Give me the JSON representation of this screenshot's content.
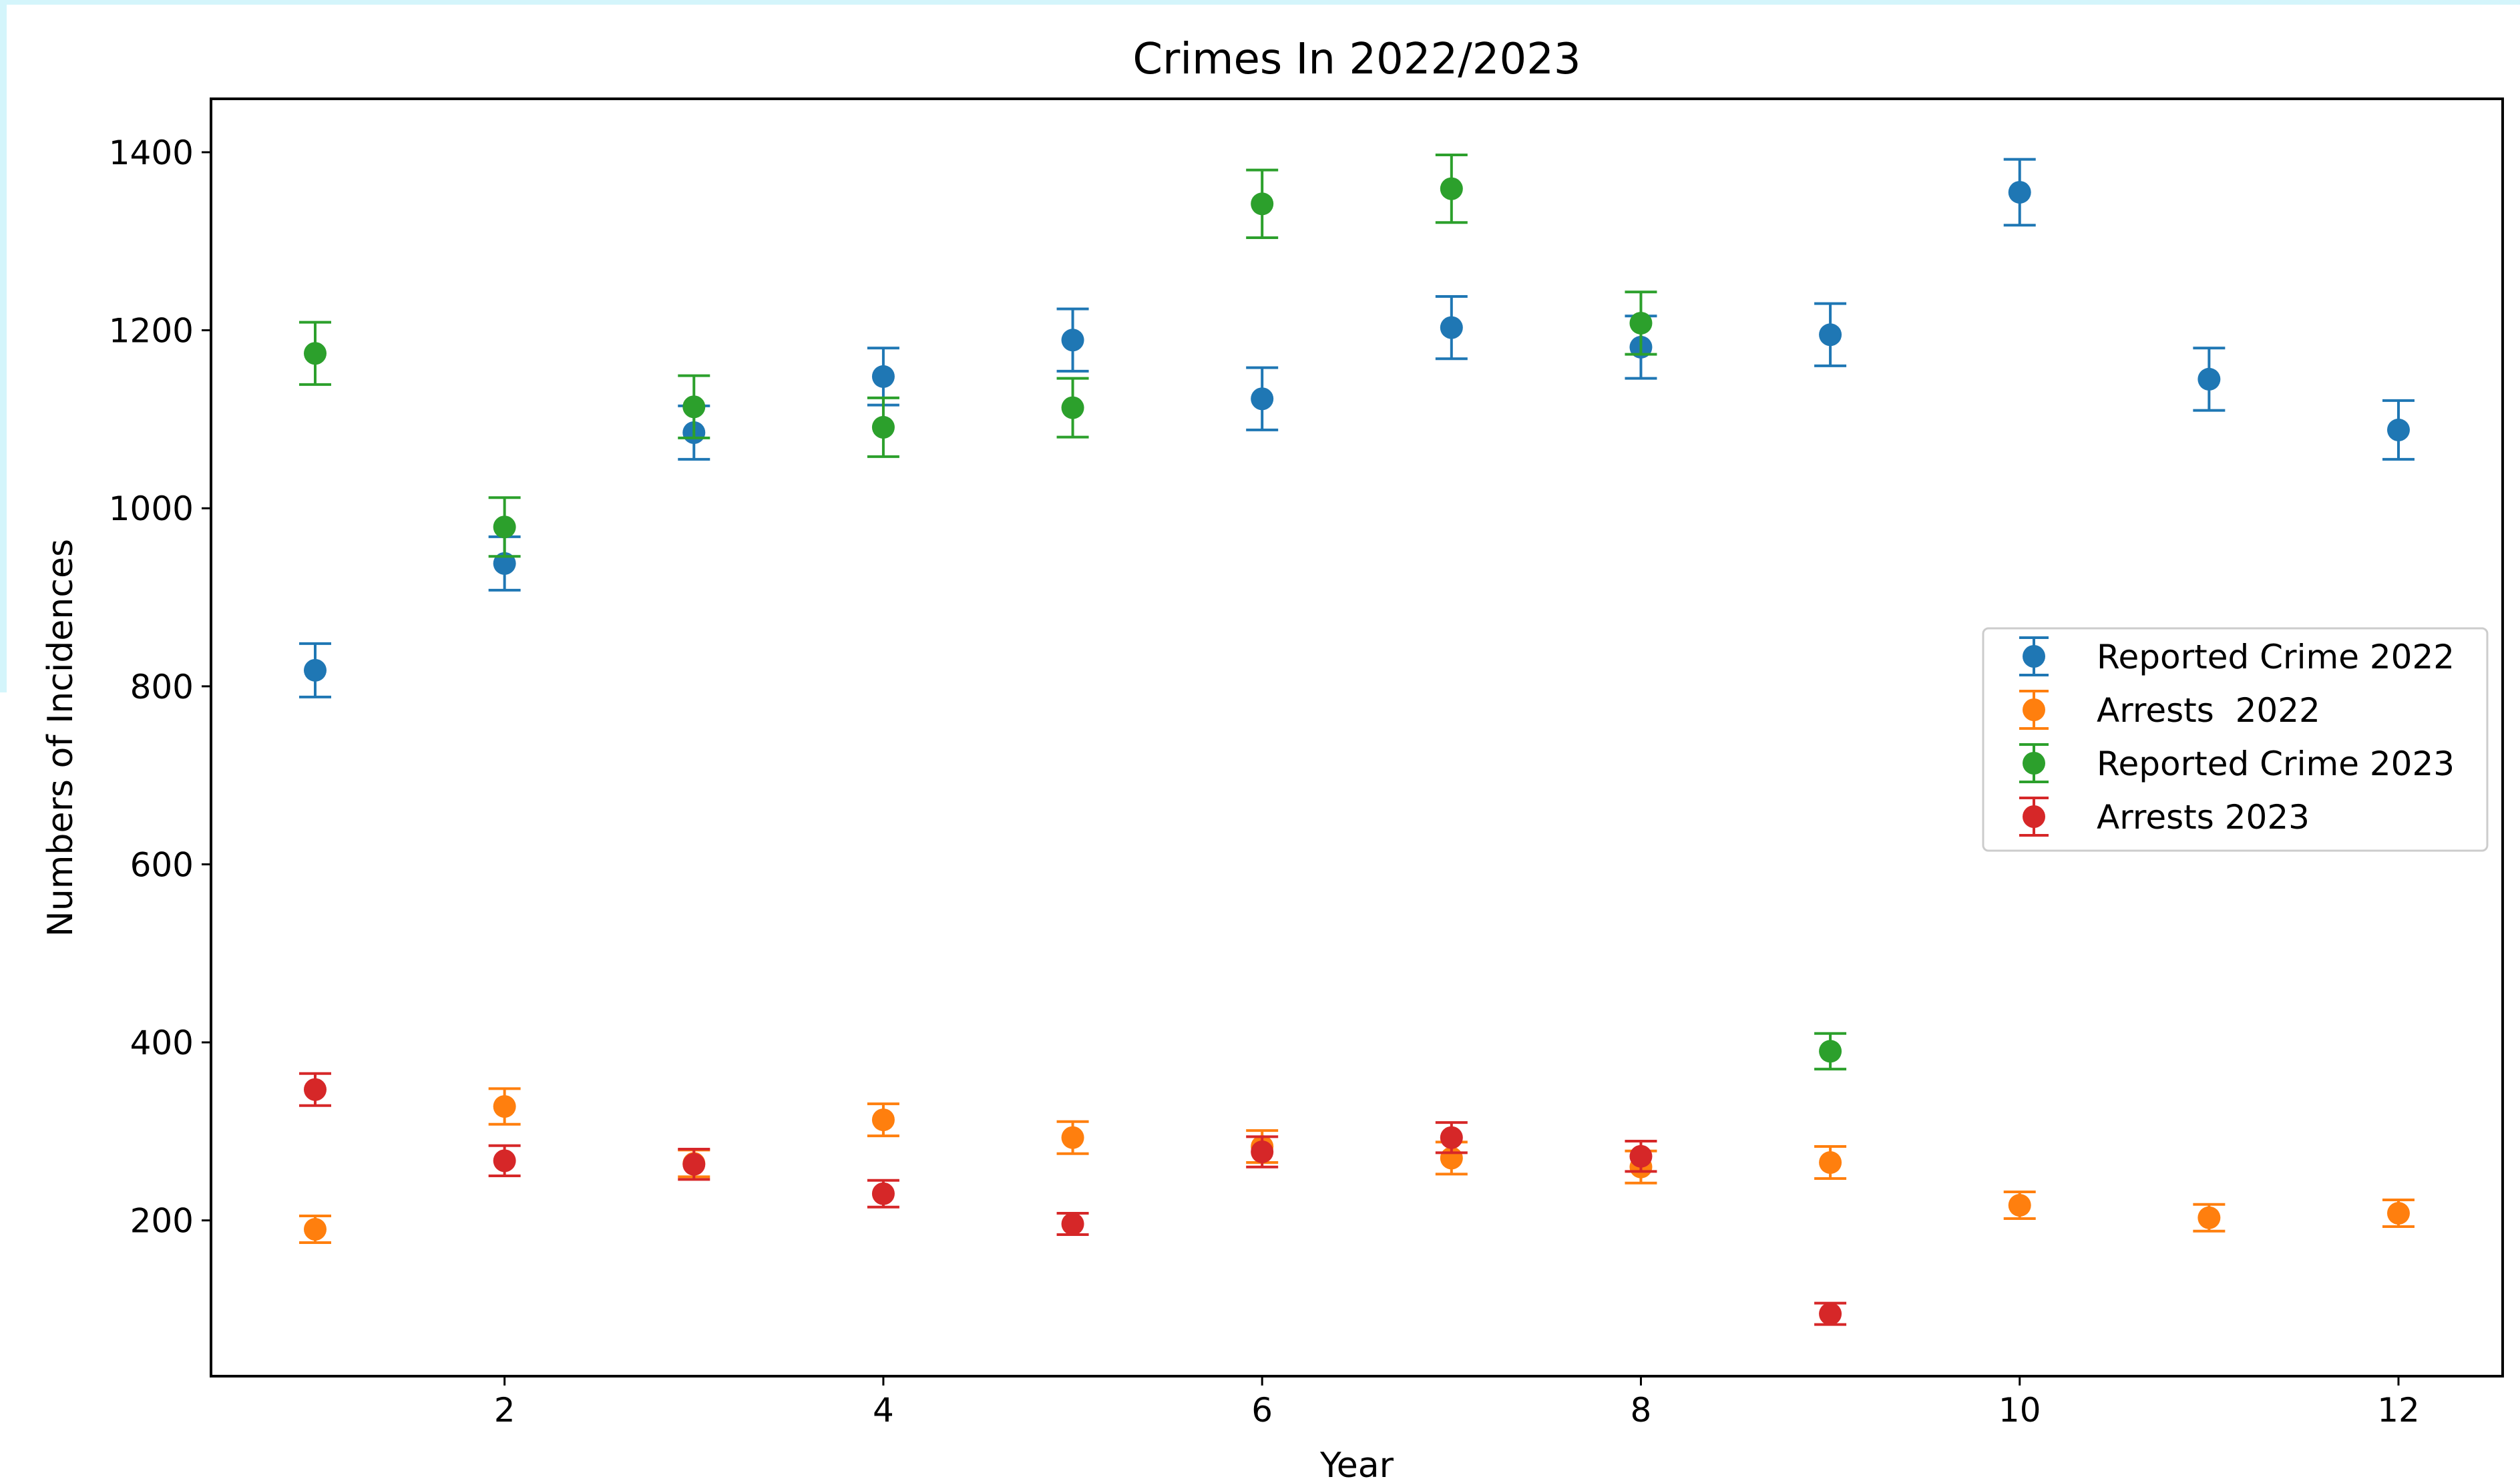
{
  "chart_data": {
    "type": "scatter",
    "title": "Crimes In 2022/2023",
    "xlabel": "Year",
    "ylabel": "Numbers of Incidences",
    "xlim": [
      0.45,
      12.55
    ],
    "ylim": [
      25,
      1460
    ],
    "xticks": [
      2,
      4,
      6,
      8,
      10,
      12
    ],
    "yticks": [
      200,
      400,
      600,
      800,
      1000,
      1200,
      1400
    ],
    "grid": false,
    "legend_placement": "center-right",
    "series": [
      {
        "name": "Reported Crime 2022",
        "color": "#1f77b4",
        "x": [
          1,
          2,
          3,
          4,
          5,
          6,
          7,
          8,
          9,
          10,
          11,
          12
        ],
        "y": [
          818,
          938,
          1085,
          1148,
          1189,
          1123,
          1203,
          1181,
          1195,
          1355,
          1145,
          1088
        ],
        "err": [
          30,
          30,
          30,
          32,
          35,
          35,
          35,
          35,
          35,
          37,
          35,
          33
        ]
      },
      {
        "name": "Arrests  2022",
        "color": "#ff7f0e",
        "x": [
          1,
          2,
          3,
          4,
          5,
          6,
          7,
          8,
          9,
          10,
          11,
          12
        ],
        "y": [
          190,
          328,
          264,
          313,
          293,
          283,
          270,
          260,
          265,
          217,
          203,
          208
        ],
        "err": [
          15,
          20,
          15,
          18,
          18,
          18,
          18,
          18,
          18,
          15,
          15,
          15
        ]
      },
      {
        "name": "Reported Crime 2023",
        "color": "#2ca02c",
        "x": [
          1,
          2,
          3,
          4,
          5,
          6,
          7,
          8,
          9
        ],
        "y": [
          1174,
          979,
          1114,
          1091,
          1113,
          1342,
          1359,
          1208,
          390
        ],
        "err": [
          35,
          33,
          35,
          33,
          33,
          38,
          38,
          35,
          20
        ]
      },
      {
        "name": "Arrests 2023",
        "color": "#d62728",
        "x": [
          1,
          2,
          3,
          4,
          5,
          6,
          7,
          8,
          9
        ],
        "y": [
          347,
          267,
          263,
          230,
          196,
          277,
          293,
          272,
          95
        ],
        "err": [
          18,
          17,
          17,
          15,
          12,
          17,
          17,
          17,
          12
        ]
      }
    ]
  }
}
